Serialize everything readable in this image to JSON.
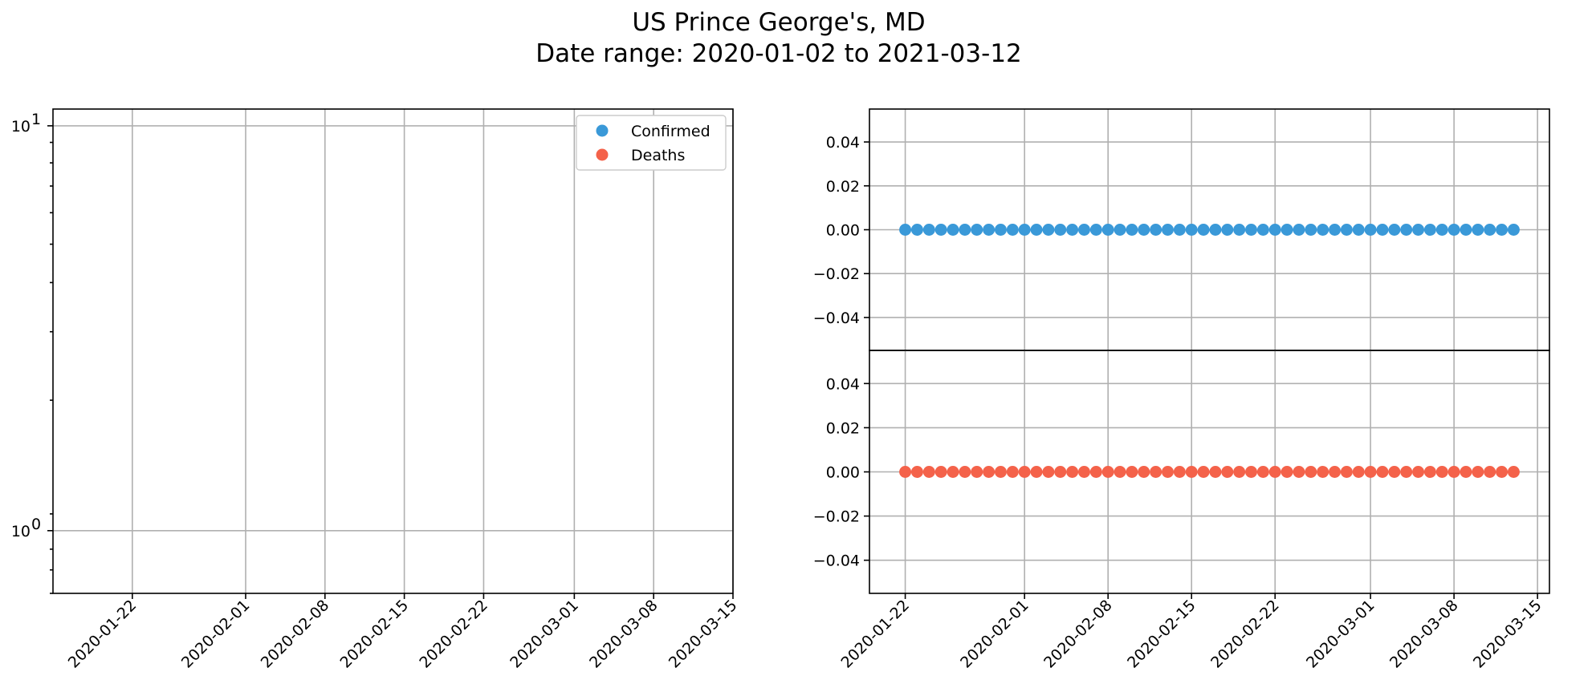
{
  "figure": {
    "title_line1": "US Prince George's, MD",
    "title_line2": "Date range: 2020-01-02 to 2021-03-12"
  },
  "colors": {
    "confirmed": "#3a99d8",
    "deaths": "#f4624a",
    "grid": "#b0b0b0"
  },
  "chart_data": [
    {
      "type": "scatter",
      "panel": "left",
      "yscale": "log",
      "ylim": [
        0.7,
        11
      ],
      "xlim": [
        "2020-01-15",
        "2020-03-15"
      ],
      "y_ticks": [
        {
          "value": 1,
          "base": "10",
          "exp": "0"
        },
        {
          "value": 10,
          "base": "10",
          "exp": "1"
        }
      ],
      "x_ticks": [
        "2020-01-22",
        "2020-02-01",
        "2020-02-08",
        "2020-02-15",
        "2020-02-22",
        "2020-03-01",
        "2020-03-08",
        "2020-03-15"
      ],
      "grid": true,
      "legend": {
        "placement": "top-right",
        "entries": [
          "Confirmed",
          "Deaths"
        ]
      },
      "series": [
        {
          "name": "Confirmed",
          "values": []
        },
        {
          "name": "Deaths",
          "values": []
        }
      ]
    },
    {
      "type": "scatter",
      "panel": "right-top",
      "ylim": [
        -0.055,
        0.055
      ],
      "y_ticks": [
        "0.04",
        "0.02",
        "0.00",
        "−0.02",
        "−0.04"
      ],
      "y_tick_values": [
        0.04,
        0.02,
        0.0,
        -0.02,
        -0.04
      ],
      "xlim": [
        "2020-01-19",
        "2020-03-16"
      ],
      "grid": true,
      "series": [
        {
          "name": "Confirmed",
          "x_start": "2020-01-22",
          "x_end": "2020-03-13",
          "y": 0
        }
      ]
    },
    {
      "type": "scatter",
      "panel": "right-bottom",
      "ylim": [
        -0.055,
        0.055
      ],
      "y_ticks": [
        "0.04",
        "0.02",
        "0.00",
        "−0.02",
        "−0.04"
      ],
      "y_tick_values": [
        0.04,
        0.02,
        0.0,
        -0.02,
        -0.04
      ],
      "xlim": [
        "2020-01-19",
        "2020-03-16"
      ],
      "x_ticks": [
        "2020-01-22",
        "2020-02-01",
        "2020-02-08",
        "2020-02-15",
        "2020-02-22",
        "2020-03-01",
        "2020-03-08",
        "2020-03-15"
      ],
      "grid": true,
      "series": [
        {
          "name": "Deaths",
          "x_start": "2020-01-22",
          "x_end": "2020-03-13",
          "y": 0
        }
      ]
    }
  ]
}
